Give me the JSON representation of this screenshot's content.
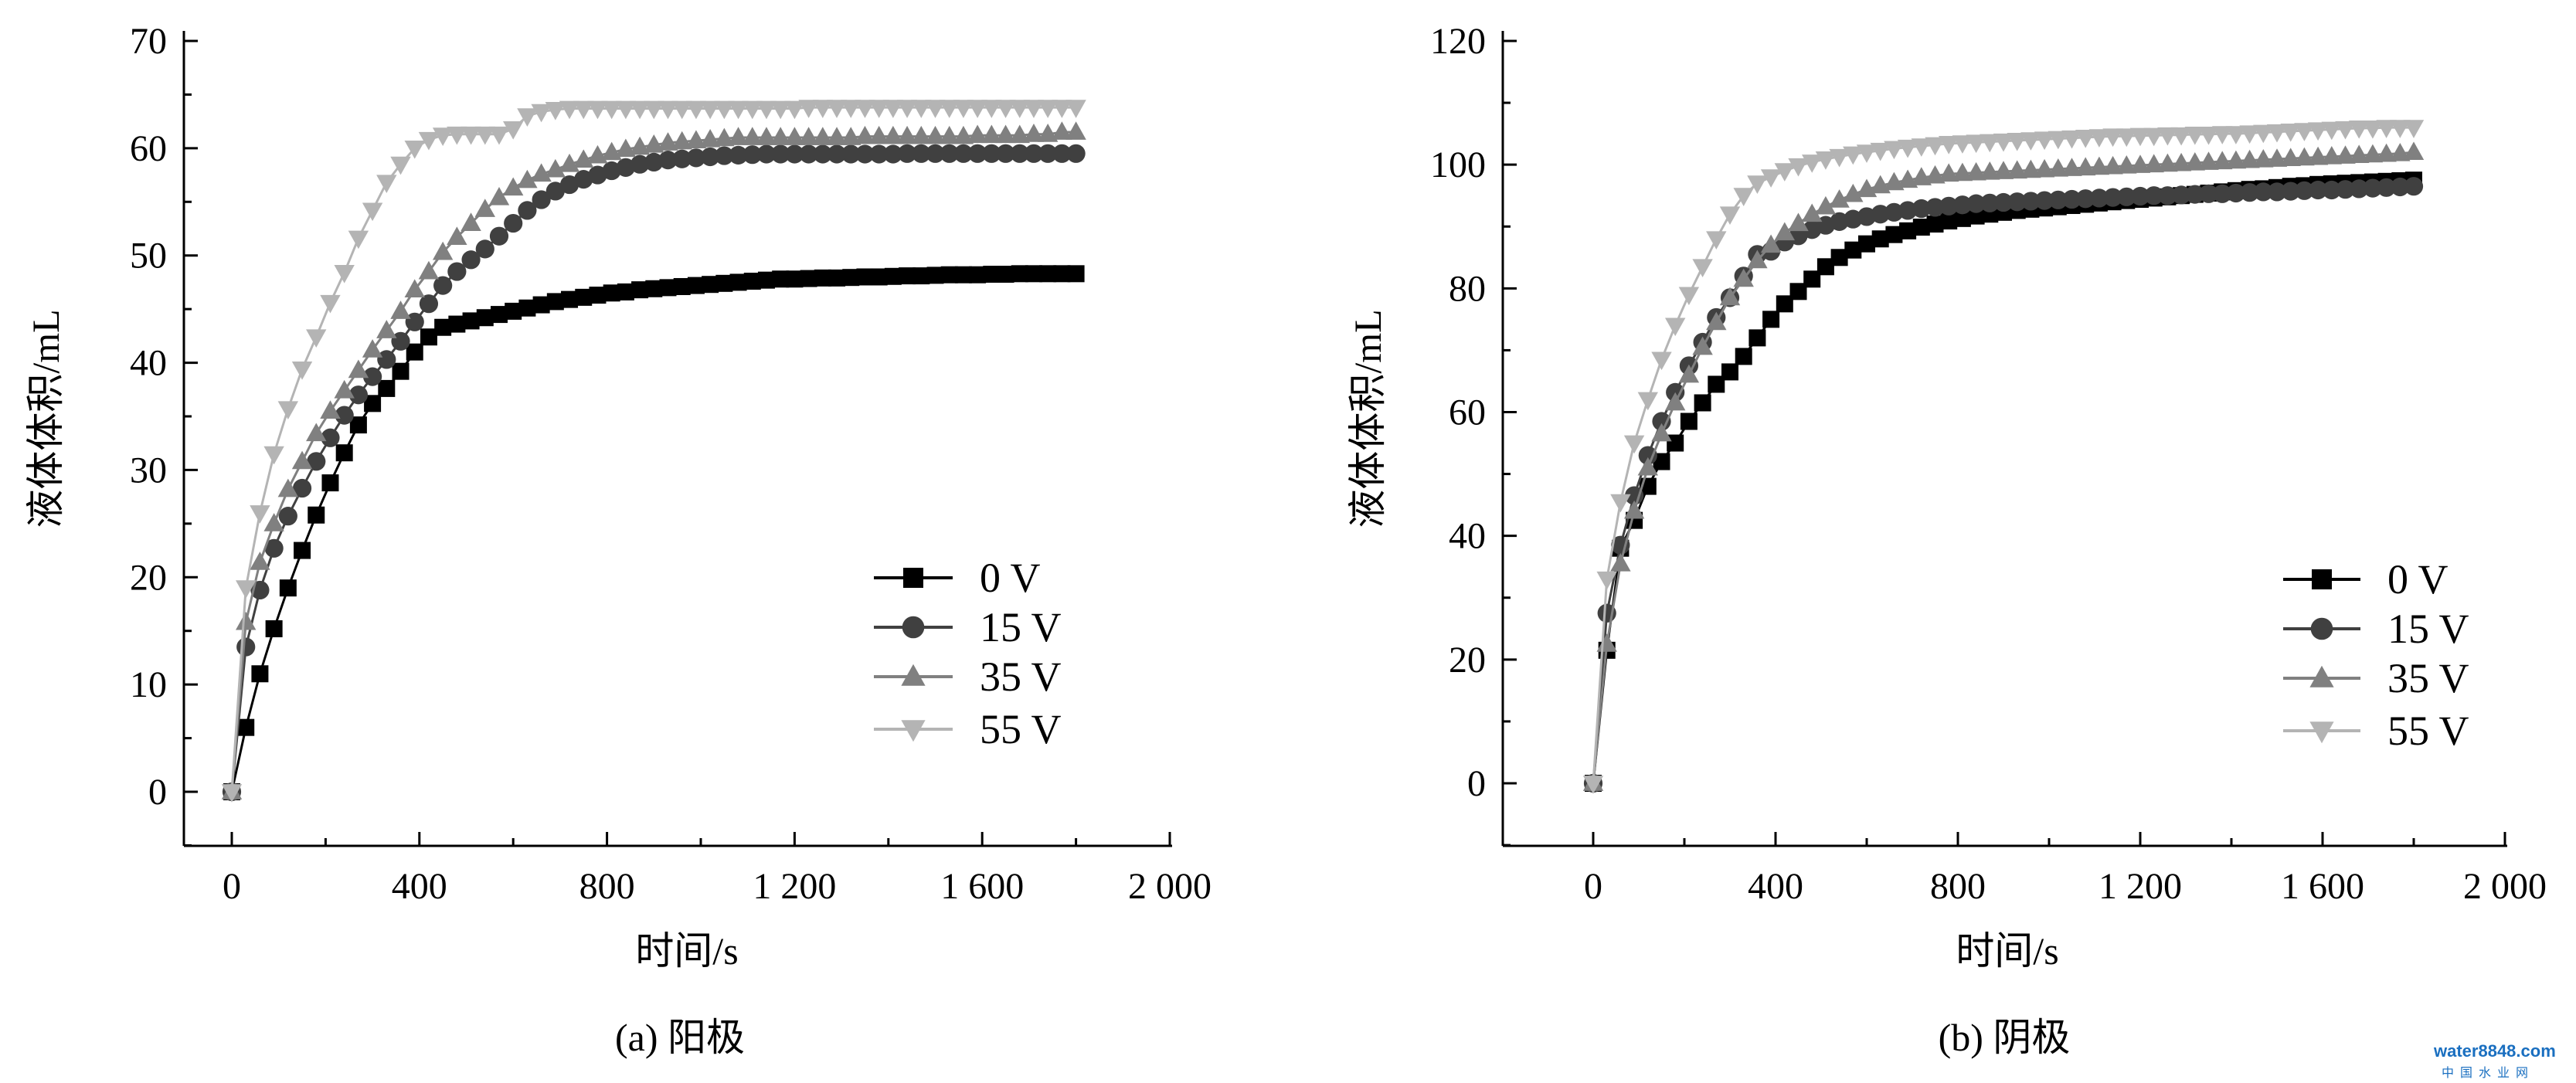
{
  "chart_data": [
    {
      "type": "line",
      "caption": "(a) 阳极",
      "xlabel": "时间/s",
      "ylabel": "液体体积/mL",
      "xlim": [
        -100,
        2000
      ],
      "ylim": [
        -5,
        70
      ],
      "xticks": [
        0,
        400,
        800,
        1200,
        1600,
        2000
      ],
      "xtick_labels": [
        "0",
        "400",
        "800",
        "1 200",
        "1 600",
        "2 000"
      ],
      "yticks": [
        0,
        10,
        20,
        30,
        40,
        50,
        60,
        70
      ],
      "ytick_labels": [
        "0",
        "10",
        "20",
        "30",
        "40",
        "50",
        "60",
        "70"
      ],
      "legend_position": "lower-right",
      "grid": false,
      "x_step": 30,
      "series": [
        {
          "name": "0 V",
          "marker": "square",
          "color": "#000000",
          "values": [
            0,
            6,
            11,
            15.2,
            19,
            22.5,
            25.8,
            28.8,
            31.6,
            34.2,
            36.2,
            37.6,
            39.2,
            41,
            42.4,
            43.3,
            43.6,
            43.9,
            44.2,
            44.5,
            44.8,
            45.1,
            45.4,
            45.7,
            45.9,
            46.1,
            46.3,
            46.5,
            46.6,
            46.8,
            46.9,
            47.0,
            47.1,
            47.2,
            47.3,
            47.4,
            47.5,
            47.6,
            47.7,
            47.8,
            47.8,
            47.85,
            47.9,
            47.9,
            47.95,
            48.0,
            48.0,
            48.05,
            48.1,
            48.1,
            48.15,
            48.2,
            48.2,
            48.2,
            48.25,
            48.25,
            48.3,
            48.3,
            48.3,
            48.3,
            48.3
          ]
        },
        {
          "name": "15 V",
          "marker": "circle",
          "color": "#404040",
          "values": [
            0,
            13.5,
            18.8,
            22.7,
            25.7,
            28.3,
            30.8,
            33,
            35.1,
            37,
            38.7,
            40.3,
            42,
            43.8,
            45.5,
            47.2,
            48.5,
            49.6,
            50.6,
            51.8,
            53,
            54.2,
            55.2,
            56,
            56.6,
            57.1,
            57.5,
            57.9,
            58.2,
            58.5,
            58.7,
            58.9,
            59.0,
            59.1,
            59.2,
            59.3,
            59.35,
            59.4,
            59.45,
            59.45,
            59.45,
            59.45,
            59.45,
            59.45,
            59.45,
            59.45,
            59.45,
            59.45,
            59.5,
            59.5,
            59.5,
            59.5,
            59.5,
            59.5,
            59.5,
            59.5,
            59.5,
            59.5,
            59.5,
            59.5,
            59.5
          ]
        },
        {
          "name": "35 V",
          "marker": "triangle-up",
          "color": "#808080",
          "values": [
            0,
            15.8,
            21.4,
            25,
            28.2,
            30.8,
            33.4,
            35.5,
            37.4,
            39.3,
            41.2,
            43,
            44.8,
            46.8,
            48.5,
            50.3,
            51.7,
            53,
            54.3,
            55.4,
            56.3,
            57,
            57.6,
            58,
            58.5,
            58.9,
            59.3,
            59.6,
            59.9,
            60.1,
            60.3,
            60.5,
            60.6,
            60.7,
            60.8,
            60.9,
            61.0,
            61.0,
            61.0,
            61.0,
            61.0,
            61.0,
            61.0,
            61.0,
            61.0,
            61.1,
            61.1,
            61.1,
            61.1,
            61.1,
            61.1,
            61.1,
            61.1,
            61.2,
            61.2,
            61.2,
            61.2,
            61.3,
            61.3,
            61.5,
            61.5
          ]
        },
        {
          "name": "55 V",
          "marker": "triangle-down",
          "color": "#b4b4b4",
          "values": [
            0,
            19,
            26,
            31.5,
            35.7,
            39.4,
            42.4,
            45.6,
            48.4,
            51.6,
            54.2,
            56.8,
            58.5,
            60,
            60.8,
            61.2,
            61.3,
            61.3,
            61.3,
            61.3,
            61.8,
            63,
            63.4,
            63.6,
            63.7,
            63.7,
            63.7,
            63.7,
            63.7,
            63.7,
            63.7,
            63.7,
            63.7,
            63.7,
            63.7,
            63.7,
            63.7,
            63.7,
            63.7,
            63.7,
            63.7,
            63.8,
            63.8,
            63.8,
            63.8,
            63.8,
            63.8,
            63.8,
            63.8,
            63.8,
            63.8,
            63.8,
            63.8,
            63.8,
            63.8,
            63.8,
            63.8,
            63.8,
            63.8,
            63.8,
            63.8
          ]
        }
      ]
    },
    {
      "type": "line",
      "caption": "(b) 阴极",
      "xlabel": "时间/s",
      "ylabel": "液体体积/mL",
      "xlim": [
        -100,
        2000
      ],
      "ylim": [
        -10,
        120
      ],
      "xticks": [
        0,
        400,
        800,
        1200,
        1600,
        2000
      ],
      "xtick_labels": [
        "0",
        "400",
        "800",
        "1 200",
        "1 600",
        "2 000"
      ],
      "yticks": [
        0,
        20,
        40,
        60,
        80,
        100,
        120
      ],
      "ytick_labels": [
        "0",
        "20",
        "40",
        "60",
        "80",
        "100",
        "120"
      ],
      "legend_position": "lower-right",
      "grid": false,
      "x_step": 30,
      "series": [
        {
          "name": "0 V",
          "marker": "square",
          "color": "#000000",
          "values": [
            0,
            21.5,
            38,
            42.5,
            48,
            52,
            55,
            58.5,
            61.5,
            64.5,
            66.5,
            69,
            72,
            75,
            77.5,
            79.5,
            81.5,
            83.5,
            85,
            86.2,
            87.2,
            88,
            88.7,
            89.3,
            89.9,
            90.4,
            90.9,
            91.3,
            91.7,
            92,
            92.3,
            92.6,
            92.8,
            93.0,
            93.2,
            93.4,
            93.6,
            93.8,
            94.0,
            94.2,
            94.4,
            94.6,
            94.8,
            95.0,
            95.2,
            95.4,
            95.6,
            95.8,
            96.0,
            96.1,
            96.3,
            96.5,
            96.6,
            96.8,
            96.9,
            97.0,
            97.1,
            97.2,
            97.3,
            97.4,
            97.5
          ]
        },
        {
          "name": "15 V",
          "marker": "circle",
          "color": "#404040",
          "values": [
            0,
            27.5,
            38.5,
            46.5,
            53,
            58.5,
            63.2,
            67.5,
            71.3,
            75.3,
            78.5,
            82,
            85.5,
            86,
            87.5,
            88.5,
            89.5,
            90.2,
            90.8,
            91.2,
            91.6,
            92,
            92.3,
            92.6,
            92.9,
            93.1,
            93.3,
            93.5,
            93.7,
            93.8,
            93.9,
            94.0,
            94.1,
            94.2,
            94.3,
            94.4,
            94.5,
            94.6,
            94.7,
            94.8,
            94.9,
            95.0,
            95.0,
            95.1,
            95.2,
            95.3,
            95.3,
            95.4,
            95.5,
            95.6,
            95.6,
            95.7,
            95.8,
            95.9,
            95.9,
            96.0,
            96.1,
            96.2,
            96.3,
            96.4,
            96.5
          ]
        },
        {
          "name": "35 V",
          "marker": "triangle-up",
          "color": "#808080",
          "values": [
            0,
            22.5,
            35.5,
            44,
            51,
            56.5,
            61.5,
            66,
            70.5,
            74.5,
            78.5,
            81.5,
            84.5,
            87,
            89,
            90.5,
            92,
            93.2,
            94.3,
            95.2,
            96,
            96.6,
            97.1,
            97.5,
            97.9,
            98.2,
            98.5,
            98.6,
            98.7,
            98.8,
            98.9,
            99.0,
            99.1,
            99.2,
            99.3,
            99.4,
            99.5,
            99.6,
            99.7,
            99.8,
            99.9,
            100.0,
            100.1,
            100.2,
            100.3,
            100.4,
            100.5,
            100.6,
            100.7,
            100.8,
            100.9,
            101.0,
            101.1,
            101.2,
            101.3,
            101.4,
            101.5,
            101.6,
            101.7,
            101.8,
            102
          ]
        },
        {
          "name": "55 V",
          "marker": "triangle-down",
          "color": "#b4b4b4",
          "values": [
            0,
            33,
            45.5,
            55,
            62,
            68.5,
            74,
            79,
            83.5,
            88,
            92,
            95,
            97,
            98,
            99,
            99.8,
            100.4,
            100.9,
            101.3,
            101.7,
            102,
            102.3,
            102.6,
            102.8,
            103,
            103.2,
            103.4,
            103.5,
            103.6,
            103.7,
            103.8,
            103.9,
            104.0,
            104.1,
            104.2,
            104.3,
            104.4,
            104.5,
            104.6,
            104.6,
            104.7,
            104.7,
            104.8,
            104.8,
            104.9,
            104.9,
            105.0,
            105.0,
            105.1,
            105.2,
            105.3,
            105.4,
            105.5,
            105.6,
            105.7,
            105.8,
            105.9,
            105.9,
            106,
            106,
            106
          ]
        }
      ]
    }
  ],
  "watermark": {
    "brand": "water8848.com",
    "subtitle": "中国水业网"
  }
}
